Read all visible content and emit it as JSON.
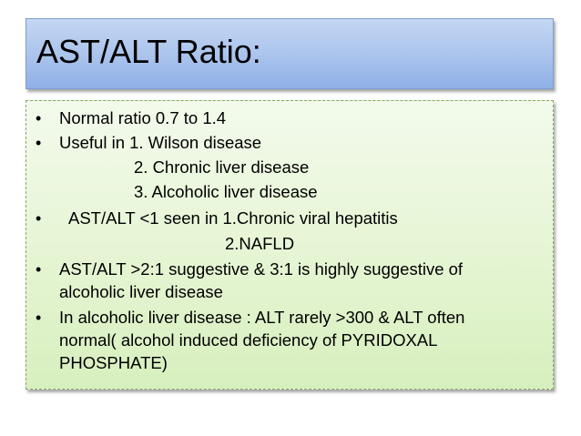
{
  "slide": {
    "title": "AST/ALT Ratio:",
    "bullet_glyph": "•",
    "lines": [
      "Normal ratio 0.7 to 1.4",
      "Useful in 1. Wilson disease",
      "2. Chronic liver disease",
      "3. Alcoholic liver disease",
      "AST/ALT <1 seen in 1.Chronic viral hepatitis",
      "2.NAFLD",
      "AST/ALT >2:1 suggestive & 3:1 is highly suggestive of",
      "alcoholic liver disease",
      "In alcoholic liver disease : ALT rarely >300 & ALT often",
      "normal( alcohol induced deficiency of PYRIDOXAL",
      "PHOSPHATE)"
    ]
  },
  "colors": {
    "title_fill": "#a9c3ec",
    "content_fill": "#e5f5d3",
    "content_border": "#8aa86a"
  }
}
